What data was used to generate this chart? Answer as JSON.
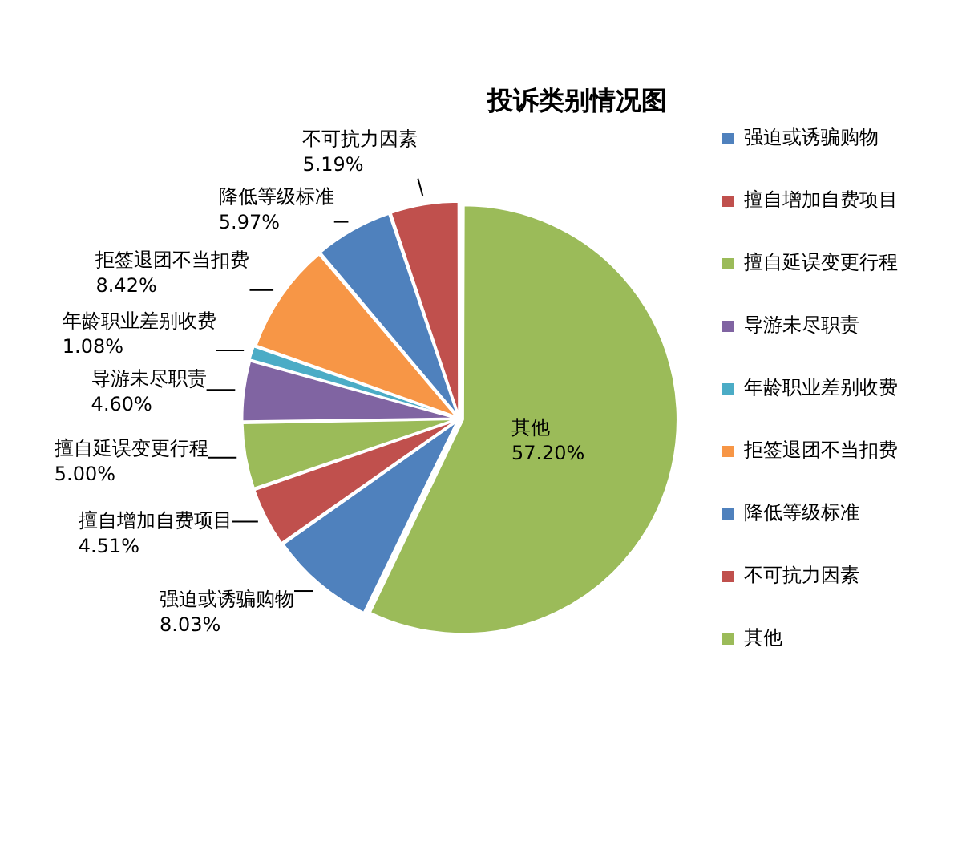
{
  "chart_data": {
    "type": "pie",
    "title": "投诉类别情况图",
    "categories": [
      "强迫或诱骗购物",
      "擅自增加自费项目",
      "擅自延误变更行程",
      "导游未尽职责",
      "年龄职业差别收费",
      "拒签退团不当扣费",
      "降低等级标准",
      "不可抗力因素",
      "其他"
    ],
    "values": [
      8.03,
      4.51,
      5.0,
      4.6,
      1.08,
      8.42,
      5.97,
      5.19,
      57.2
    ],
    "value_labels": [
      "8.03%",
      "4.51%",
      "5.00%",
      "4.60%",
      "1.08%",
      "8.42%",
      "5.97%",
      "5.19%",
      "57.20%"
    ],
    "colors": [
      "#4f81bd",
      "#c0504d",
      "#9bbb59",
      "#8064a2",
      "#4bacc6",
      "#f79646",
      "#4f81bd",
      "#c0504d",
      "#9bbb59"
    ],
    "legend": "right"
  }
}
